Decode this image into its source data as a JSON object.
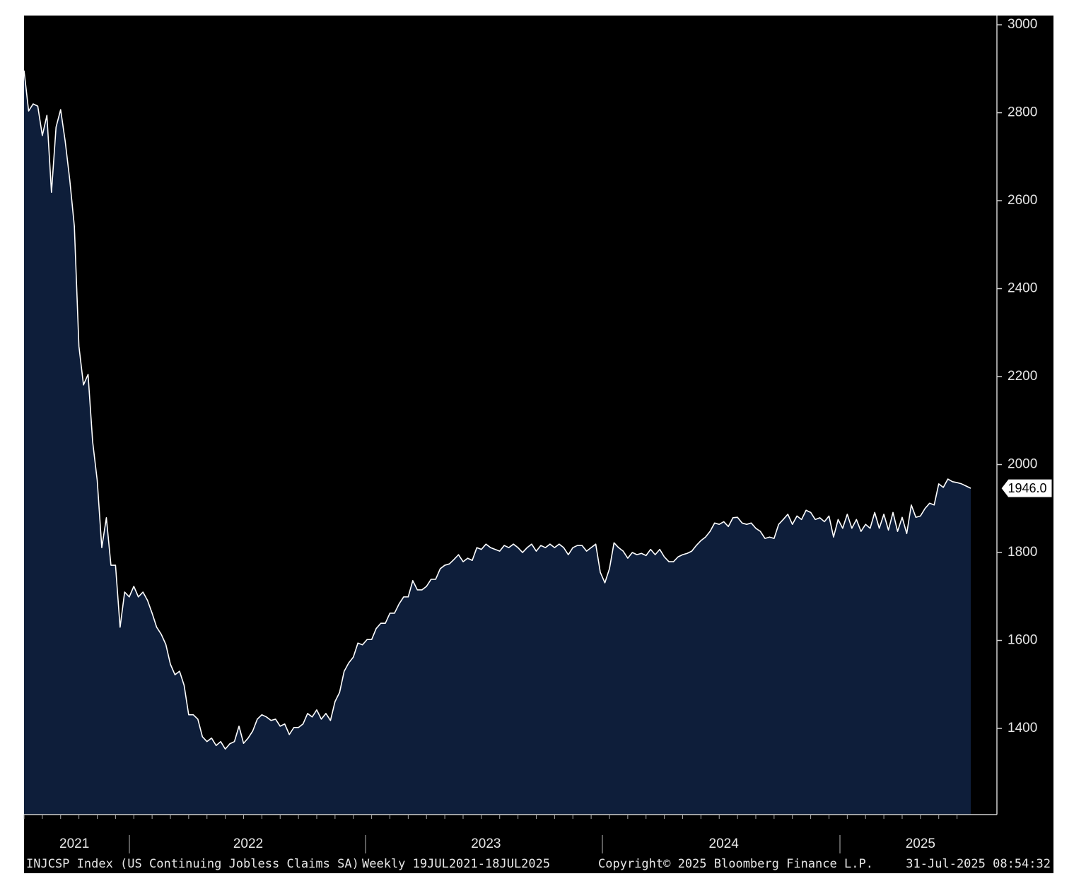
{
  "chart_data": {
    "type": "area",
    "categories": [
      null,
      null,
      null,
      null,
      null,
      null,
      null,
      null,
      null,
      null,
      null,
      "2021",
      null,
      null,
      null,
      null,
      null,
      null,
      null,
      null,
      null,
      null,
      null,
      null,
      null,
      null,
      null,
      null,
      null,
      null,
      null,
      null,
      null,
      null,
      null,
      null,
      null,
      null,
      null,
      null,
      null,
      null,
      null,
      null,
      null,
      null,
      null,
      null,
      null,
      "2022",
      null,
      null,
      null,
      null,
      null,
      null,
      null,
      null,
      null,
      null,
      null,
      null,
      null,
      null,
      null,
      null,
      null,
      null,
      null,
      null,
      null,
      null,
      null,
      null,
      null,
      null,
      null,
      null,
      null,
      null,
      null,
      null,
      null,
      null,
      null,
      null,
      null,
      null,
      null,
      null,
      null,
      null,
      null,
      null,
      null,
      null,
      null,
      null,
      null,
      null,
      null,
      "2023",
      null,
      null,
      null,
      null,
      null,
      null,
      null,
      null,
      null,
      null,
      null,
      null,
      null,
      null,
      null,
      null,
      null,
      null,
      null,
      null,
      null,
      null,
      null,
      null,
      null,
      null,
      null,
      null,
      null,
      null,
      null,
      null,
      null,
      null,
      null,
      null,
      null,
      null,
      null,
      null,
      null,
      null,
      null,
      null,
      null,
      null,
      null,
      null,
      null,
      null,
      null,
      "2024",
      null,
      null,
      null,
      null,
      null,
      null,
      null,
      null,
      null,
      null,
      null,
      null,
      null,
      null,
      null,
      null,
      null,
      null,
      null,
      null,
      null,
      null,
      null,
      null,
      null,
      null,
      null,
      null,
      null,
      null,
      null,
      null,
      null,
      null,
      null,
      null,
      null,
      null,
      null,
      null,
      null,
      null,
      "2025",
      null,
      null,
      null,
      null,
      null,
      null,
      null,
      null,
      null,
      null,
      null
    ],
    "series": [
      {
        "color": "#0e1e3a",
        "line_color": "#ffffff",
        "values": [
          2896,
          2804,
          2820,
          2815,
          2748,
          2794,
          2619,
          2767,
          2807,
          2735,
          2647,
          2542,
          2269,
          2181,
          2205,
          2052,
          1964,
          1811,
          1879,
          1771,
          1771,
          1630,
          1710,
          1699,
          1723,
          1699,
          1710,
          1691,
          1662,
          1630,
          1614,
          1591,
          1546,
          1522,
          1530,
          1498,
          1431,
          1431,
          1421,
          1381,
          1370,
          1378,
          1361,
          1370,
          1353,
          1365,
          1370,
          1405,
          1366,
          1378,
          1394,
          1421,
          1431,
          1426,
          1418,
          1421,
          1405,
          1410,
          1386,
          1402,
          1402,
          1410,
          1434,
          1426,
          1442,
          1421,
          1434,
          1418,
          1461,
          1482,
          1530,
          1549,
          1562,
          1594,
          1590,
          1602,
          1602,
          1627,
          1639,
          1639,
          1662,
          1662,
          1683,
          1699,
          1699,
          1736,
          1715,
          1715,
          1723,
          1739,
          1739,
          1763,
          1771,
          1774,
          1784,
          1795,
          1779,
          1787,
          1782,
          1811,
          1807,
          1819,
          1811,
          1807,
          1803,
          1816,
          1811,
          1819,
          1811,
          1800,
          1811,
          1819,
          1803,
          1816,
          1811,
          1819,
          1811,
          1819,
          1811,
          1795,
          1811,
          1816,
          1816,
          1803,
          1811,
          1819,
          1755,
          1731,
          1763,
          1822,
          1811,
          1803,
          1787,
          1800,
          1795,
          1798,
          1793,
          1807,
          1795,
          1807,
          1790,
          1779,
          1779,
          1790,
          1795,
          1798,
          1803,
          1816,
          1827,
          1835,
          1848,
          1867,
          1864,
          1870,
          1859,
          1879,
          1880,
          1867,
          1864,
          1867,
          1855,
          1848,
          1832,
          1835,
          1832,
          1864,
          1875,
          1887,
          1864,
          1883,
          1875,
          1896,
          1891,
          1875,
          1879,
          1870,
          1883,
          1835,
          1875,
          1855,
          1887,
          1855,
          1875,
          1848,
          1864,
          1855,
          1891,
          1855,
          1887,
          1851,
          1891,
          1848,
          1880,
          1843,
          1908,
          1880,
          1883,
          1900,
          1912,
          1908,
          1956,
          1948,
          1967,
          1961,
          1959,
          1956,
          1951,
          1946
        ]
      }
    ],
    "last_value_label": "1946.0",
    "ylim": [
      1204,
      3021
    ],
    "yticks": [
      1400,
      1600,
      1800,
      2000,
      2200,
      2400,
      2600,
      2800,
      3000
    ],
    "footer": [
      "INJCSP Index (US Continuing Jobless Claims SA)",
      "Weekly 19JUL2021-18JUL2025",
      "Copyright© 2025 Bloomberg Finance L.P.",
      "31-Jul-2025 08:54:32"
    ]
  }
}
